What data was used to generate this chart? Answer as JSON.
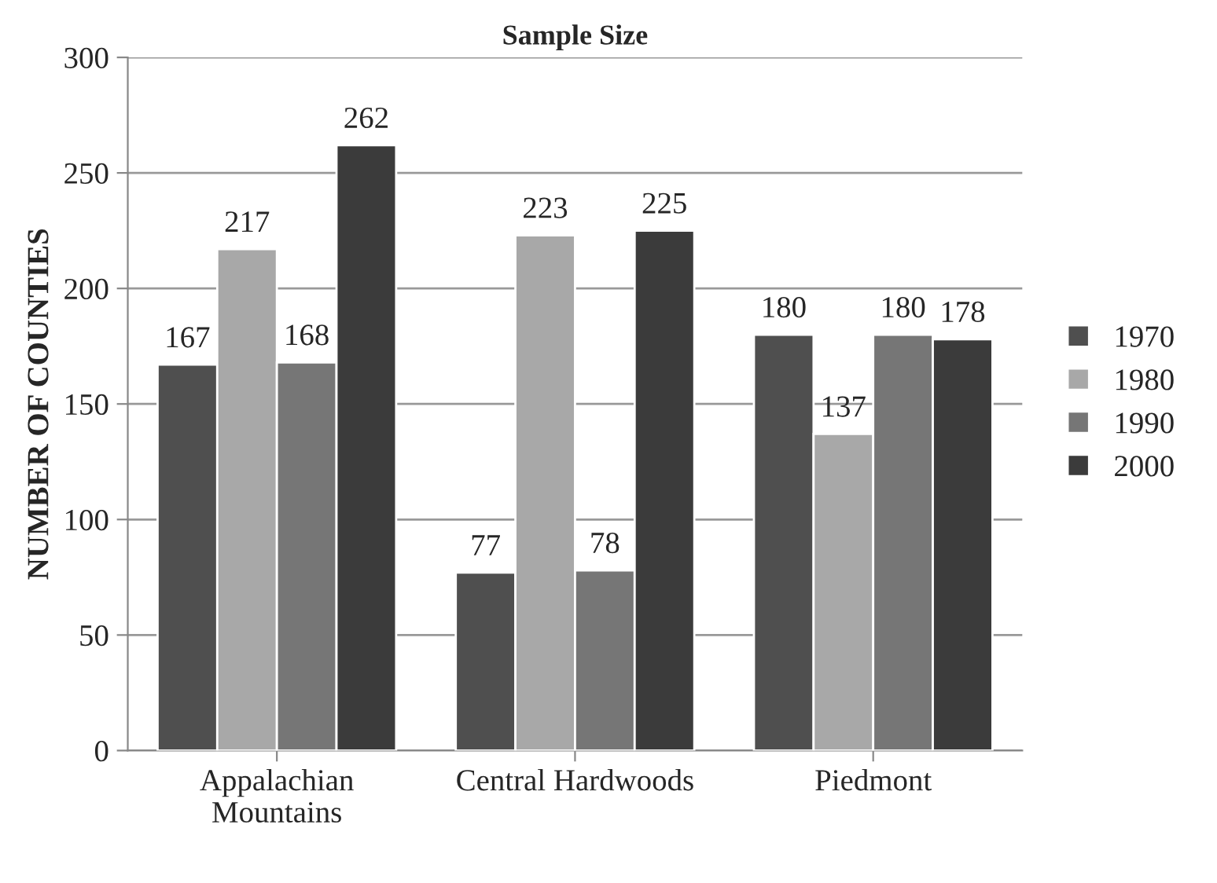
{
  "chart_data": {
    "type": "bar",
    "title": "Sample Size",
    "ylabel": "NUMBER OF COUNTIES",
    "categories": [
      "Appalachian\nMountains",
      "Central Hardwoods",
      "Piedmont"
    ],
    "series": [
      {
        "name": "1970",
        "color": "#4f4f4f",
        "values": [
          167,
          77,
          180
        ]
      },
      {
        "name": "1980",
        "color": "#a8a8a8",
        "values": [
          217,
          223,
          137
        ]
      },
      {
        "name": "1990",
        "color": "#767676",
        "values": [
          168,
          78,
          180
        ]
      },
      {
        "name": "2000",
        "color": "#3b3b3b",
        "values": [
          262,
          225,
          178
        ]
      }
    ],
    "ylim": [
      0,
      300
    ],
    "yticks": [
      0,
      50,
      100,
      150,
      200,
      250,
      300
    ],
    "grid": "y",
    "legend": "right",
    "data_labels": true
  }
}
